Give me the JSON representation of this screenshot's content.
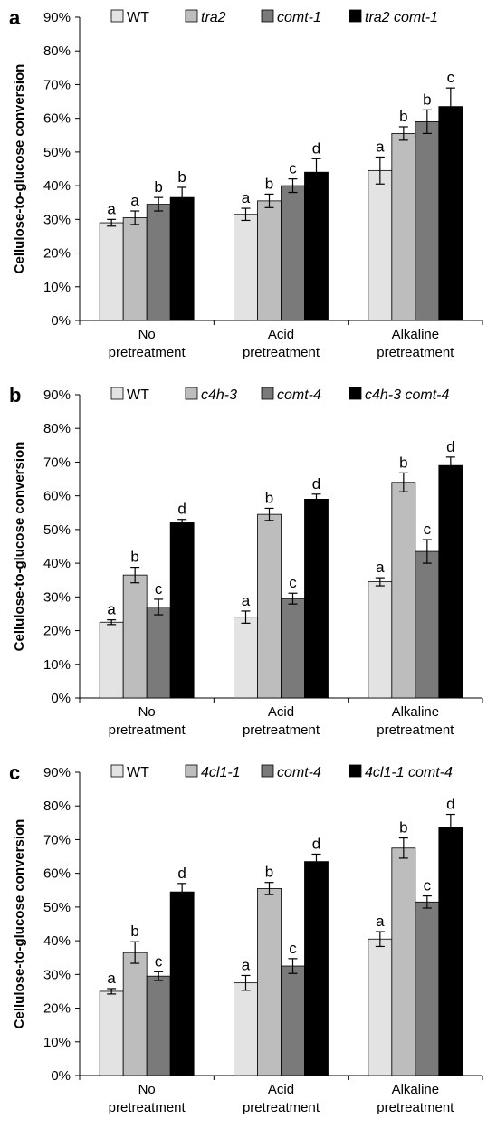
{
  "chart_data": [
    {
      "panel": "a",
      "type": "bar",
      "ylabel": "Cellulose-to-glucose conversion",
      "ylim": [
        0,
        90
      ],
      "yticks": [
        "0%",
        "10%",
        "20%",
        "30%",
        "40%",
        "50%",
        "60%",
        "70%",
        "80%",
        "90%"
      ],
      "categories": [
        [
          "No",
          "pretreatment"
        ],
        [
          "Acid",
          "pretreatment"
        ],
        [
          "Alkaline",
          "pretreatment"
        ]
      ],
      "legend_position": "top",
      "series": [
        {
          "name": "WT",
          "color": "#e3e3e3",
          "values": [
            29,
            31.5,
            44.5
          ],
          "errors": [
            1,
            1.8,
            4
          ],
          "letters": [
            "a",
            "a",
            "a"
          ]
        },
        {
          "name": "tra2",
          "color": "#bdbdbd",
          "italic": true,
          "values": [
            30.5,
            35.5,
            55.5
          ],
          "errors": [
            2,
            2,
            2
          ],
          "letters": [
            "a",
            "b",
            "b"
          ]
        },
        {
          "name": "comt-1",
          "color": "#7a7a7a",
          "italic": true,
          "values": [
            34.5,
            40,
            59
          ],
          "errors": [
            2,
            2,
            3.5
          ],
          "letters": [
            "b",
            "c",
            "b"
          ]
        },
        {
          "name": "tra2 comt-1",
          "color": "#000000",
          "italic": true,
          "values": [
            36.5,
            44,
            63.5
          ],
          "errors": [
            3,
            4,
            5.5
          ],
          "letters": [
            "b",
            "d",
            "c"
          ]
        }
      ]
    },
    {
      "panel": "b",
      "type": "bar",
      "ylabel": "Cellulose-to-glucose conversion",
      "ylim": [
        0,
        90
      ],
      "yticks": [
        "0%",
        "10%",
        "20%",
        "30%",
        "40%",
        "50%",
        "60%",
        "70%",
        "80%",
        "90%"
      ],
      "categories": [
        [
          "No",
          "pretreatment"
        ],
        [
          "Acid",
          "pretreatment"
        ],
        [
          "Alkaline",
          "pretreatment"
        ]
      ],
      "legend_position": "top",
      "series": [
        {
          "name": "WT",
          "color": "#e3e3e3",
          "values": [
            22.5,
            24,
            34.5
          ],
          "errors": [
            0.7,
            1.8,
            1.2
          ],
          "letters": [
            "a",
            "a",
            "a"
          ]
        },
        {
          "name": "c4h-3",
          "color": "#bdbdbd",
          "italic": true,
          "values": [
            36.5,
            54.5,
            64
          ],
          "errors": [
            2.3,
            1.8,
            2.8
          ],
          "letters": [
            "b",
            "b",
            "b"
          ]
        },
        {
          "name": "comt-4",
          "color": "#7a7a7a",
          "italic": true,
          "values": [
            27,
            29.5,
            43.5
          ],
          "errors": [
            2.3,
            1.6,
            3.5
          ],
          "letters": [
            "c",
            "c",
            "c"
          ]
        },
        {
          "name": "c4h-3 comt-4",
          "color": "#000000",
          "italic": true,
          "values": [
            52,
            59,
            69
          ],
          "errors": [
            1,
            1.5,
            2.5
          ],
          "letters": [
            "d",
            "d",
            "d"
          ]
        }
      ]
    },
    {
      "panel": "c",
      "type": "bar",
      "ylabel": "Cellulose-to-glucose conversion",
      "ylim": [
        0,
        90
      ],
      "yticks": [
        "0%",
        "10%",
        "20%",
        "30%",
        "40%",
        "50%",
        "60%",
        "70%",
        "80%",
        "90%"
      ],
      "categories": [
        [
          "No",
          "pretreatment"
        ],
        [
          "Acid",
          "pretreatment"
        ],
        [
          "Alkaline",
          "pretreatment"
        ]
      ],
      "legend_position": "top",
      "series": [
        {
          "name": "WT",
          "color": "#e3e3e3",
          "values": [
            25,
            27.5,
            40.5
          ],
          "errors": [
            0.8,
            2.2,
            2.2
          ],
          "letters": [
            "a",
            "a",
            "a"
          ]
        },
        {
          "name": "4cl1-1",
          "color": "#bdbdbd",
          "italic": true,
          "values": [
            36.5,
            55.5,
            67.5
          ],
          "errors": [
            3.2,
            1.8,
            3
          ],
          "letters": [
            "b",
            "b",
            "b"
          ]
        },
        {
          "name": "comt-4",
          "color": "#7a7a7a",
          "italic": true,
          "values": [
            29.5,
            32.5,
            51.5
          ],
          "errors": [
            1.3,
            2.2,
            1.8
          ],
          "letters": [
            "c",
            "c",
            "c"
          ]
        },
        {
          "name": "4cl1-1 comt-4",
          "color": "#000000",
          "italic": true,
          "values": [
            54.5,
            63.5,
            73.5
          ],
          "errors": [
            2.5,
            2.2,
            4
          ],
          "letters": [
            "d",
            "d",
            "d"
          ]
        }
      ]
    }
  ]
}
